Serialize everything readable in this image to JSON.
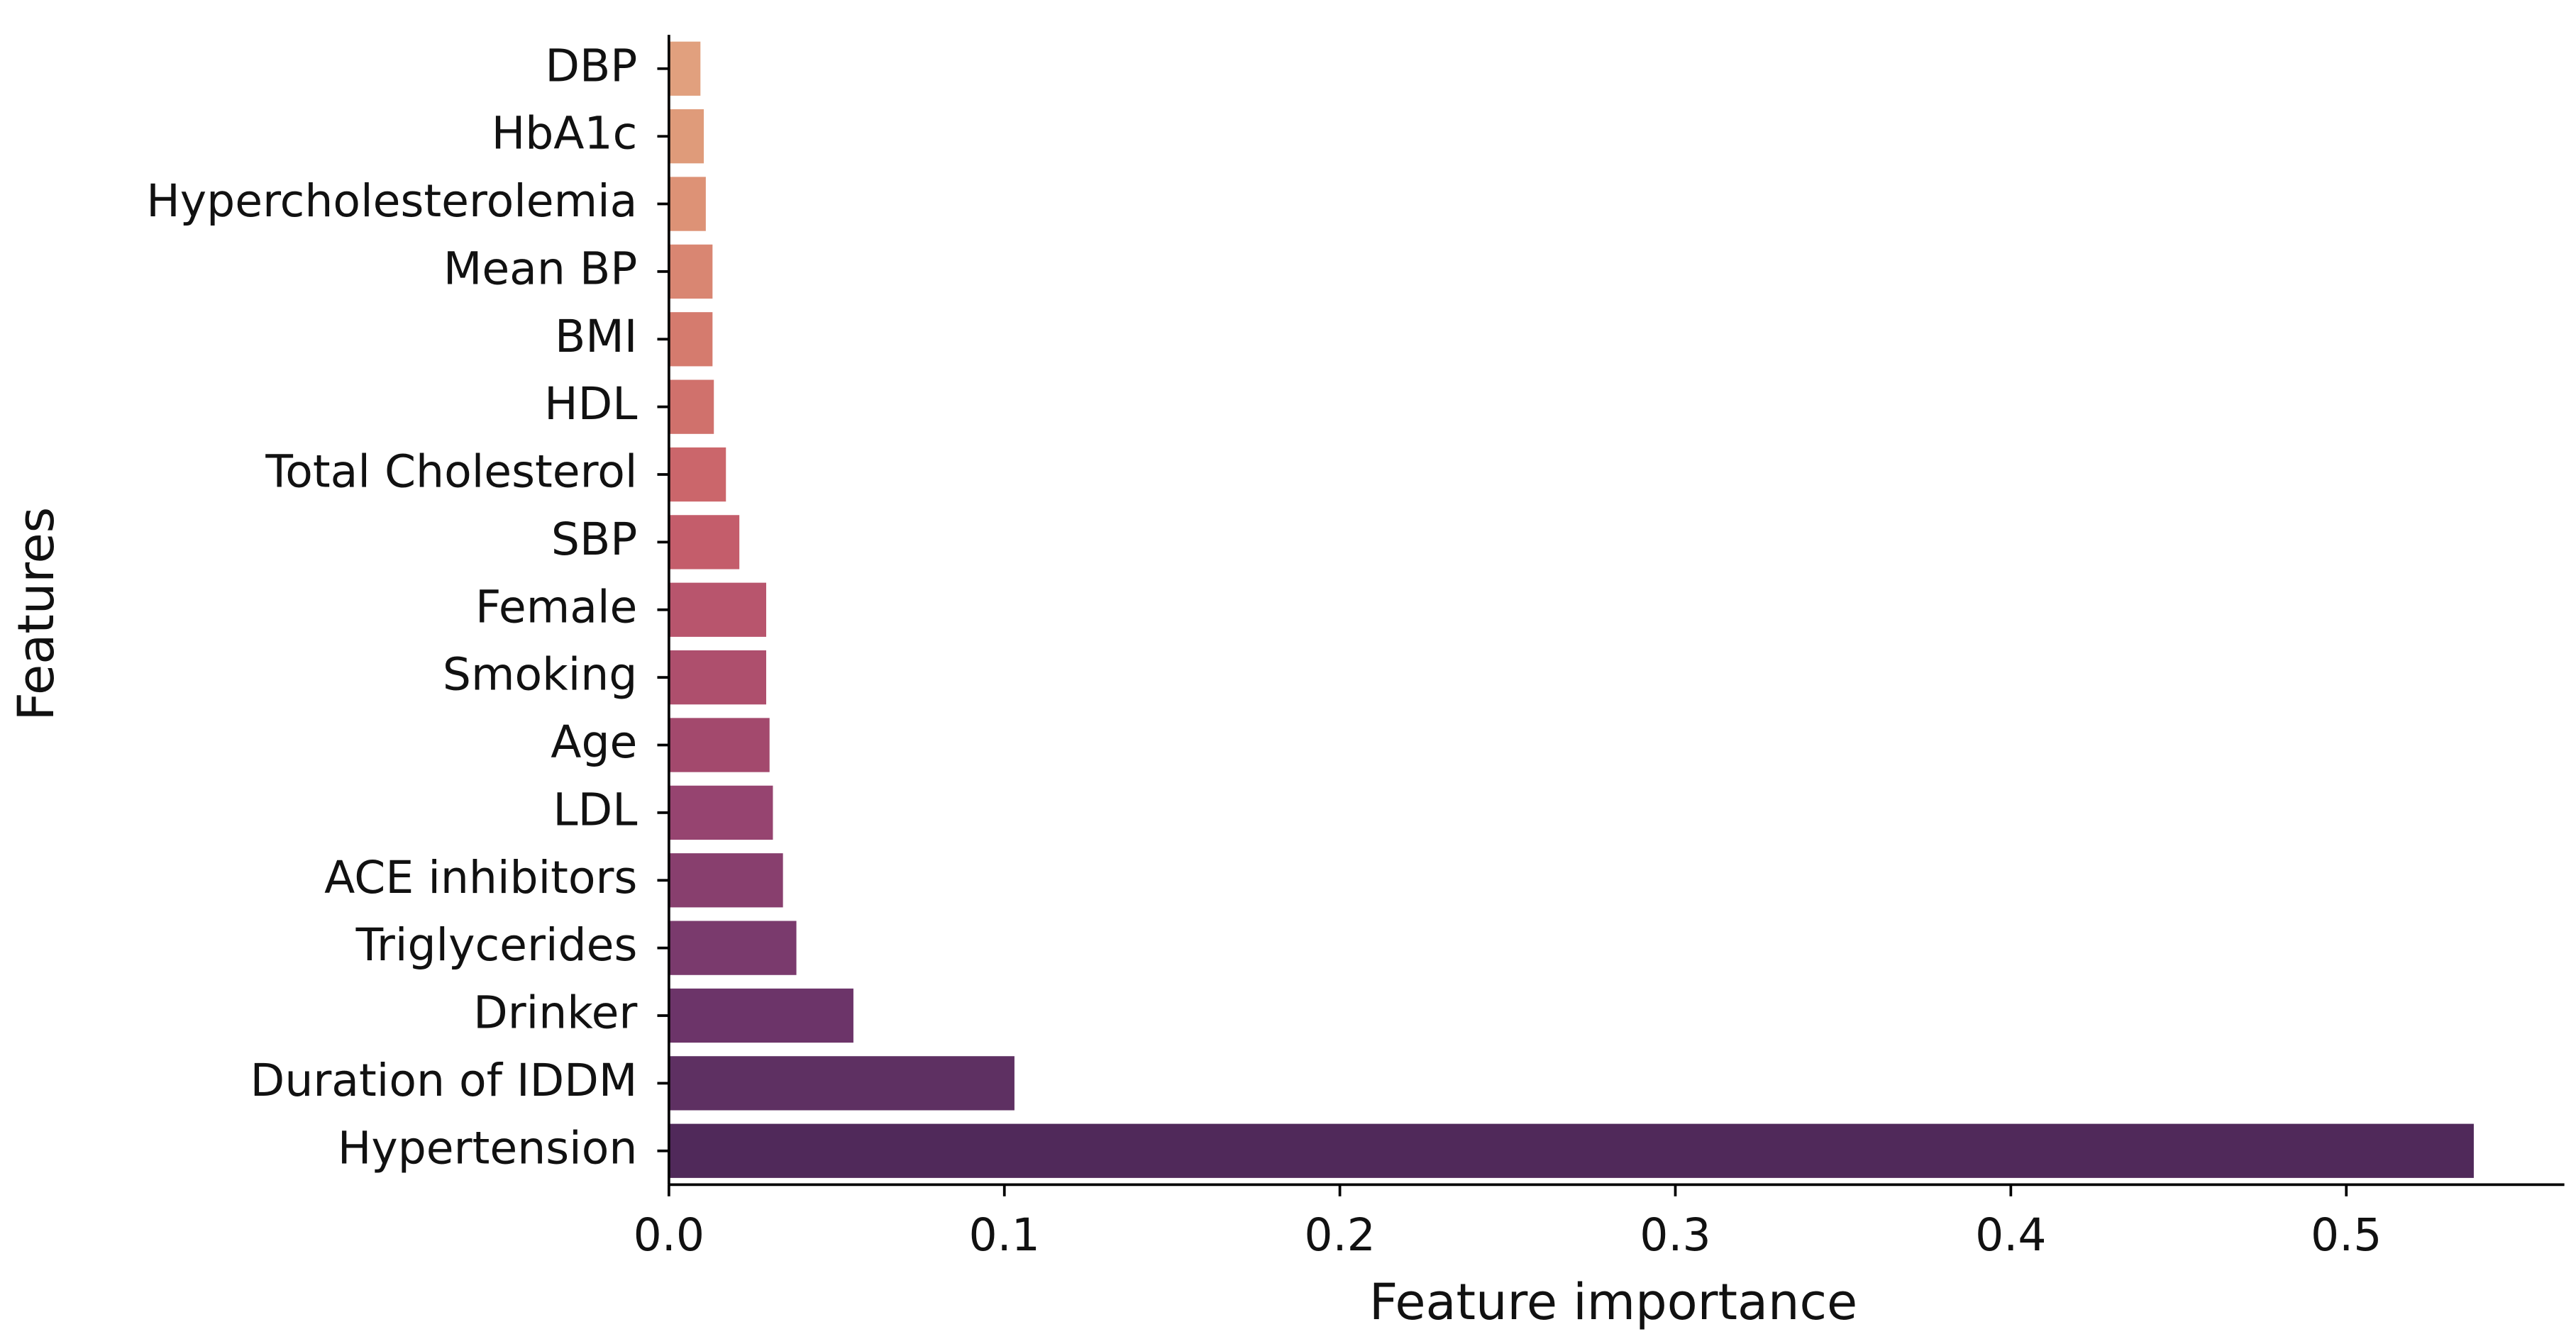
{
  "chart_data": {
    "type": "barh",
    "xlabel": "Feature importance",
    "ylabel": "Features",
    "categories": [
      "DBP",
      "HbA1c",
      "Hypercholesterolemia",
      "Mean BP",
      "BMI",
      "HDL",
      "Total Cholesterol",
      "SBP",
      "Female",
      "Smoking",
      "Age",
      "LDL",
      "ACE inhibitors",
      "Triglycerides",
      "Drinker",
      "Duration of IDDM",
      "Hypertension"
    ],
    "values": [
      0.0094,
      0.0104,
      0.011,
      0.013,
      0.013,
      0.0134,
      0.017,
      0.021,
      0.029,
      0.029,
      0.03,
      0.031,
      0.034,
      0.038,
      0.055,
      0.103,
      0.538
    ],
    "colors": [
      "#e1a07e",
      "#df9b7a",
      "#dd9276",
      "#d98672",
      "#d57b6e",
      "#d0716c",
      "#cb666b",
      "#c45d6b",
      "#b8556d",
      "#ae4f6d",
      "#a3496d",
      "#964470",
      "#883f6e",
      "#7a3a6d",
      "#6c3469",
      "#5e3062",
      "#50295a"
    ],
    "xlim": [
      0,
      0.565
    ],
    "xticks": [
      {
        "value": 0,
        "label": "0.0"
      },
      0.1,
      0.2,
      0.3,
      0.4,
      0.5
    ]
  }
}
